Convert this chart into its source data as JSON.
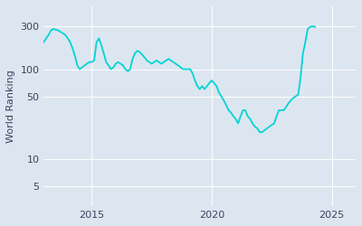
{
  "ylabel": "World Ranking",
  "line_color": "#00d4d4",
  "background_color": "#dce6f0",
  "axes_facecolor": "#dce6f0",
  "figure_facecolor": "#dce6f0",
  "yticks": [
    5,
    10,
    50,
    100,
    300
  ],
  "xlim_start": 2013.0,
  "xlim_end": 2026.0,
  "ylim_bottom": 3,
  "ylim_top": 500,
  "xticks": [
    2015,
    2020,
    2025
  ],
  "line_width": 1.3,
  "data_x": [
    2013.0,
    2013.1,
    2013.2,
    2013.3,
    2013.4,
    2013.5,
    2013.6,
    2013.7,
    2013.8,
    2013.9,
    2014.0,
    2014.1,
    2014.2,
    2014.3,
    2014.4,
    2014.5,
    2014.6,
    2014.7,
    2014.8,
    2014.9,
    2015.0,
    2015.1,
    2015.2,
    2015.3,
    2015.4,
    2015.5,
    2015.6,
    2015.7,
    2015.8,
    2015.9,
    2016.0,
    2016.1,
    2016.2,
    2016.3,
    2016.4,
    2016.5,
    2016.6,
    2016.7,
    2016.8,
    2016.9,
    2017.0,
    2017.1,
    2017.2,
    2017.3,
    2017.4,
    2017.5,
    2017.6,
    2017.7,
    2017.8,
    2017.9,
    2018.0,
    2018.1,
    2018.2,
    2018.3,
    2018.4,
    2018.5,
    2018.6,
    2018.7,
    2018.8,
    2018.9,
    2019.0,
    2019.1,
    2019.2,
    2019.3,
    2019.4,
    2019.5,
    2019.6,
    2019.7,
    2019.8,
    2019.9,
    2020.0,
    2020.1,
    2020.2,
    2020.3,
    2020.4,
    2020.5,
    2020.6,
    2020.7,
    2020.8,
    2020.9,
    2021.0,
    2021.1,
    2021.2,
    2021.3,
    2021.4,
    2021.5,
    2021.6,
    2021.7,
    2021.8,
    2021.9,
    2022.0,
    2022.1,
    2022.2,
    2022.3,
    2022.4,
    2022.5,
    2022.6,
    2022.7,
    2022.8,
    2022.9,
    2023.0,
    2023.1,
    2023.2,
    2023.3,
    2023.4,
    2023.5,
    2023.6,
    2023.7,
    2023.8,
    2023.9,
    2024.0,
    2024.1,
    2024.2,
    2024.3
  ],
  "data_y": [
    200,
    220,
    240,
    270,
    280,
    275,
    270,
    260,
    250,
    240,
    220,
    200,
    170,
    140,
    110,
    100,
    105,
    110,
    115,
    120,
    120,
    125,
    200,
    220,
    185,
    150,
    120,
    110,
    100,
    105,
    115,
    120,
    115,
    110,
    100,
    95,
    100,
    130,
    150,
    160,
    155,
    145,
    135,
    125,
    120,
    115,
    120,
    125,
    120,
    115,
    120,
    125,
    130,
    125,
    120,
    115,
    110,
    105,
    100,
    100,
    100,
    100,
    90,
    75,
    65,
    60,
    65,
    60,
    65,
    70,
    75,
    70,
    65,
    55,
    50,
    45,
    40,
    35,
    33,
    30,
    28,
    25,
    30,
    35,
    35,
    30,
    28,
    25,
    23,
    22,
    20,
    20,
    21,
    22,
    23,
    24,
    25,
    30,
    35,
    35,
    35,
    38,
    42,
    45,
    48,
    50,
    52,
    80,
    150,
    200,
    280,
    295,
    300,
    295
  ]
}
